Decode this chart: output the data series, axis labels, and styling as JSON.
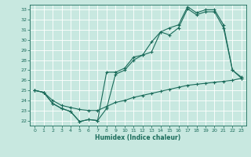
{
  "xlabel": "Humidex (Indice chaleur)",
  "x_ticks": [
    0,
    1,
    2,
    3,
    4,
    5,
    6,
    7,
    8,
    9,
    10,
    11,
    12,
    13,
    14,
    15,
    16,
    17,
    18,
    19,
    20,
    21,
    22,
    23
  ],
  "ylim": [
    21.5,
    33.5
  ],
  "xlim": [
    -0.5,
    23.5
  ],
  "yticks": [
    22,
    23,
    24,
    25,
    26,
    27,
    28,
    29,
    30,
    31,
    32,
    33
  ],
  "bg_color": "#c8e8e0",
  "grid_color": "#b8d8d0",
  "line_color": "#1a6b5a",
  "line1_x": [
    0,
    1,
    2,
    3,
    4,
    5,
    6,
    7,
    8,
    9,
    10,
    11,
    12,
    13,
    14,
    15,
    16,
    17,
    18,
    19,
    20,
    21,
    22,
    23
  ],
  "line1_y": [
    25.0,
    24.8,
    23.7,
    23.2,
    22.9,
    21.9,
    22.1,
    22.0,
    23.2,
    26.6,
    27.0,
    28.0,
    28.5,
    28.8,
    30.8,
    30.5,
    31.2,
    33.1,
    32.5,
    32.8,
    32.8,
    31.2,
    27.0,
    26.2
  ],
  "line2_x": [
    0,
    1,
    2,
    3,
    4,
    5,
    6,
    7,
    8,
    9,
    10,
    11,
    12,
    13,
    14,
    15,
    16,
    17,
    18,
    19,
    20,
    21,
    22,
    23
  ],
  "line2_y": [
    25.0,
    24.8,
    23.7,
    23.2,
    22.9,
    21.9,
    22.1,
    22.0,
    26.8,
    26.8,
    27.2,
    28.3,
    28.5,
    29.8,
    30.8,
    31.2,
    31.5,
    33.3,
    32.7,
    33.0,
    33.0,
    31.5,
    27.0,
    26.3
  ],
  "line3_x": [
    0,
    1,
    2,
    3,
    4,
    5,
    6,
    7,
    8,
    9,
    10,
    11,
    12,
    13,
    14,
    15,
    16,
    17,
    18,
    19,
    20,
    21,
    22,
    23
  ],
  "line3_y": [
    25.0,
    24.8,
    24.0,
    23.5,
    23.3,
    23.1,
    23.0,
    23.0,
    23.4,
    23.8,
    24.0,
    24.3,
    24.5,
    24.7,
    24.9,
    25.1,
    25.3,
    25.5,
    25.6,
    25.7,
    25.8,
    25.9,
    26.0,
    26.2
  ]
}
